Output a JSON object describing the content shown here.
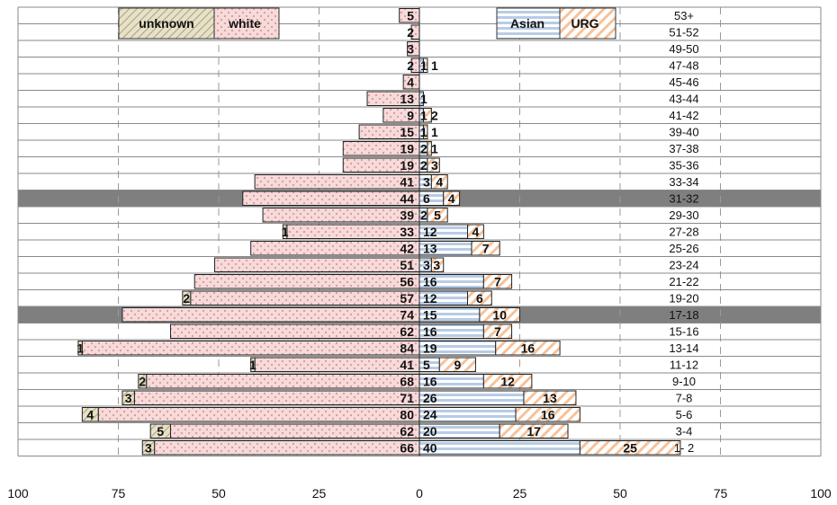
{
  "chart_data": {
    "type": "bar",
    "orientation": "horizontal-diverging",
    "xlim": [
      -100,
      100
    ],
    "x_ticks": [
      "100",
      "75",
      "50",
      "25",
      "0",
      "25",
      "50",
      "75",
      "100"
    ],
    "categories": [
      "53+",
      "51-52",
      "49-50",
      "47-48",
      "45-46",
      "43-44",
      "41-42",
      "39-40",
      "37-38",
      "35-36",
      "33-34",
      "31-32",
      "29-30",
      "27-28",
      "25-26",
      "23-24",
      "21-22",
      "19-20",
      "17-18",
      "15-16",
      "13-14",
      "11-12",
      "9-10",
      "7-8",
      "5-6",
      "3-4",
      "1-2"
    ],
    "category_labels": [
      "53+",
      "51-52",
      "49-50",
      "47-48",
      "45-46",
      "43-44",
      "41-42",
      "39-40",
      "37-38",
      "35-36",
      "33-34",
      "31-32",
      "29-30",
      "27-28",
      "25-26",
      "23-24",
      "21-22",
      "19-20",
      "17-18",
      "15-16",
      "13-14",
      "11-12",
      "9-10",
      "7-8",
      "5-6",
      "3-4",
      "1- 2"
    ],
    "highlighted_rows": [
      "31-32",
      "17-18"
    ],
    "series": [
      {
        "name": "white",
        "side": "left",
        "color": "#f2c6c6",
        "values": [
          5,
          2,
          3,
          2,
          4,
          13,
          9,
          15,
          19,
          19,
          41,
          44,
          39,
          33,
          42,
          51,
          56,
          57,
          74,
          62,
          84,
          41,
          68,
          71,
          80,
          62,
          66
        ]
      },
      {
        "name": "unknown",
        "side": "left",
        "color": "#d8d2b2",
        "values": [
          0,
          0,
          0,
          0,
          0,
          0,
          0,
          0,
          0,
          0,
          0,
          0,
          0,
          1,
          0,
          0,
          0,
          2,
          0,
          0,
          1,
          1,
          2,
          3,
          4,
          5,
          3
        ]
      },
      {
        "name": "Asian",
        "side": "right",
        "color": "#bcd2ea",
        "values": [
          0,
          0,
          0,
          1,
          0,
          1,
          1,
          1,
          2,
          2,
          3,
          6,
          2,
          12,
          13,
          3,
          16,
          12,
          15,
          16,
          19,
          5,
          16,
          26,
          24,
          20,
          40
        ]
      },
      {
        "name": "URG",
        "side": "right",
        "color": "#f6c6a0",
        "values": [
          0,
          0,
          0,
          1,
          0,
          0,
          2,
          1,
          1,
          3,
          4,
          4,
          5,
          4,
          7,
          3,
          7,
          6,
          10,
          7,
          16,
          9,
          12,
          13,
          16,
          17,
          25
        ]
      }
    ],
    "legend": {
      "left": [
        "unknown",
        "white"
      ],
      "right": [
        "Asian",
        "URG"
      ],
      "placement": "top"
    },
    "grid": true
  }
}
